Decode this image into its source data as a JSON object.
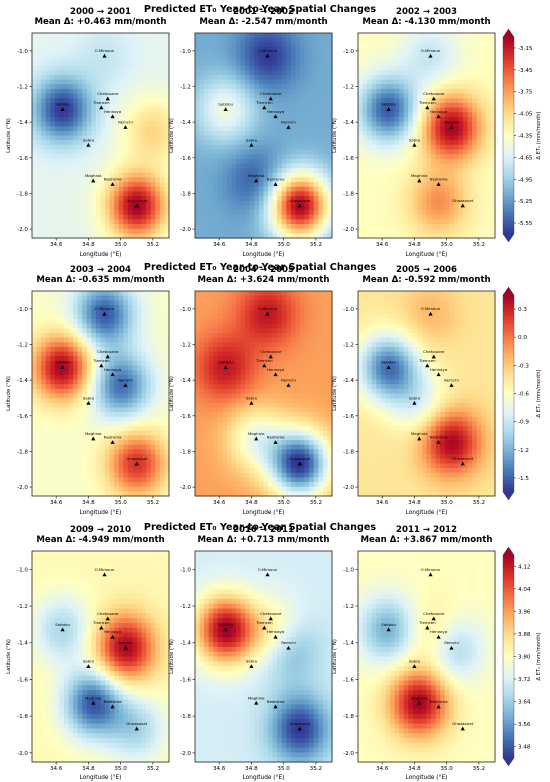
{
  "chart_data": [
    {
      "type": "heatmap",
      "title": "Predicted ET₀ Year-to-Year Spatial Changes",
      "colorbar": {
        "label": "Δ ET₀ (mm/month)",
        "ticks": [
          "-3.15",
          "-3.45",
          "-3.75",
          "-4.05",
          "-4.35",
          "-4.65",
          "-4.95",
          "-5.25",
          "-5.55"
        ],
        "range": [
          -5.7,
          -3.0
        ]
      },
      "panels": [
        {
          "title": "2000 → 2001",
          "subtitle": "Mean Δ: +0.463 mm/month",
          "xlabel": "Longitude (°E)",
          "ylabel": "Latitude (°N)",
          "xticks": [
            "34.6",
            "34.8",
            "35.0",
            "35.2"
          ],
          "yticks": [
            "-1.0",
            "-1.2",
            "-1.4",
            "-1.6",
            "-1.8",
            "-2.0"
          ],
          "xlim": [
            34.45,
            35.3
          ],
          "ylim": [
            -2.05,
            -0.9
          ],
          "base": 0.42,
          "hotspots": [
            {
              "lon": 34.64,
              "lat": -1.33,
              "v": 0.0
            },
            {
              "lon": 35.1,
              "lat": -1.87,
              "v": 1.0
            },
            {
              "lon": 34.9,
              "lat": -1.03,
              "v": 0.35
            },
            {
              "lon": 35.2,
              "lat": -1.45,
              "v": 0.62
            }
          ]
        },
        {
          "title": "2001 → 2002",
          "subtitle": "Mean Δ: -2.547 mm/month",
          "xlabel": "Longitude (°E)",
          "ylabel": "Latitude (°N)",
          "xticks": [
            "34.6",
            "34.8",
            "35.0",
            "35.2"
          ],
          "yticks": [
            "-1.0",
            "-1.2",
            "-1.4",
            "-1.6",
            "-1.8",
            "-2.0"
          ],
          "xlim": [
            34.45,
            35.3
          ],
          "ylim": [
            -2.05,
            -0.9
          ],
          "base": 0.2,
          "hotspots": [
            {
              "lon": 35.1,
              "lat": -1.87,
              "v": 1.0
            },
            {
              "lon": 34.64,
              "lat": -1.33,
              "v": 0.45
            },
            {
              "lon": 34.9,
              "lat": -1.03,
              "v": 0.0
            },
            {
              "lon": 34.83,
              "lat": -1.73,
              "v": 0.05
            }
          ]
        },
        {
          "title": "2002 → 2003",
          "subtitle": "Mean Δ: -4.130 mm/month",
          "xlabel": "Longitude (°E)",
          "ylabel": "Latitude (°N)",
          "xticks": [
            "34.6",
            "34.8",
            "35.0",
            "35.2"
          ],
          "yticks": [
            "-1.0",
            "-1.2",
            "-1.4",
            "-1.6",
            "-1.8",
            "-2.0"
          ],
          "xlim": [
            34.45,
            35.3
          ],
          "ylim": [
            -2.05,
            -0.9
          ],
          "base": 0.5,
          "hotspots": [
            {
              "lon": 34.64,
              "lat": -1.33,
              "v": 0.05
            },
            {
              "lon": 35.03,
              "lat": -1.43,
              "v": 1.0
            },
            {
              "lon": 34.9,
              "lat": -1.03,
              "v": 0.35
            },
            {
              "lon": 34.95,
              "lat": -1.85,
              "v": 0.75
            }
          ]
        }
      ]
    },
    {
      "type": "heatmap",
      "title": "Predicted ET₀ Year-to-Year Spatial Changes",
      "colorbar": {
        "label": "Δ ET₀ (mm/month)",
        "ticks": [
          "0.3",
          "0.0",
          "-0.3",
          "-0.6",
          "-0.9",
          "-1.2",
          "-1.5"
        ],
        "range": [
          -1.65,
          0.45
        ]
      },
      "panels": [
        {
          "title": "2003 → 2004",
          "subtitle": "Mean Δ: -0.635 mm/month",
          "xlabel": "Longitude (°E)",
          "ylabel": "Latitude (°N)",
          "xticks": [
            "34.6",
            "34.8",
            "35.0",
            "35.2"
          ],
          "yticks": [
            "-1.0",
            "-1.2",
            "-1.4",
            "-1.6",
            "-1.8",
            "-2.0"
          ],
          "xlim": [
            34.45,
            35.3
          ],
          "ylim": [
            -2.05,
            -0.9
          ],
          "base": 0.48,
          "hotspots": [
            {
              "lon": 34.64,
              "lat": -1.33,
              "v": 1.0
            },
            {
              "lon": 35.1,
              "lat": -1.87,
              "v": 0.9
            },
            {
              "lon": 34.9,
              "lat": -1.03,
              "v": 0.05
            },
            {
              "lon": 35.0,
              "lat": -1.43,
              "v": 0.08
            }
          ]
        },
        {
          "title": "2004 → 2005",
          "subtitle": "Mean Δ: +3.624 mm/month",
          "xlabel": "Longitude (°E)",
          "ylabel": "Latitude (°N)",
          "xticks": [
            "34.6",
            "34.8",
            "35.0",
            "35.2"
          ],
          "yticks": [
            "-1.0",
            "-1.2",
            "-1.4",
            "-1.6",
            "-1.8",
            "-2.0"
          ],
          "xlim": [
            34.45,
            35.3
          ],
          "ylim": [
            -2.05,
            -0.9
          ],
          "base": 0.72,
          "hotspots": [
            {
              "lon": 34.64,
              "lat": -1.33,
              "v": 0.95
            },
            {
              "lon": 34.9,
              "lat": -1.03,
              "v": 0.95
            },
            {
              "lon": 35.1,
              "lat": -1.87,
              "v": 0.0
            },
            {
              "lon": 34.83,
              "lat": -1.73,
              "v": 0.45
            }
          ]
        },
        {
          "title": "2005 → 2006",
          "subtitle": "Mean Δ: -0.592 mm/month",
          "xlabel": "Longitude (°E)",
          "ylabel": "Latitude (°N)",
          "xticks": [
            "34.6",
            "34.8",
            "35.0",
            "35.2"
          ],
          "yticks": [
            "-1.0",
            "-1.2",
            "-1.4",
            "-1.6",
            "-1.8",
            "-2.0"
          ],
          "xlim": [
            34.45,
            35.3
          ],
          "ylim": [
            -2.05,
            -0.9
          ],
          "base": 0.58,
          "hotspots": [
            {
              "lon": 34.64,
              "lat": -1.33,
              "v": 0.1
            },
            {
              "lon": 35.03,
              "lat": -1.75,
              "v": 1.0
            },
            {
              "lon": 34.83,
              "lat": -1.53,
              "v": 0.4
            },
            {
              "lon": 34.9,
              "lat": -1.03,
              "v": 0.68
            }
          ]
        }
      ]
    },
    {
      "type": "heatmap",
      "title": "Predicted ET₀ Year-to-Year Spatial Changes",
      "colorbar": {
        "label": "Δ ET₀ (mm/month)",
        "ticks": [
          "4.12",
          "4.04",
          "3.96",
          "3.88",
          "3.80",
          "3.72",
          "3.64",
          "3.56",
          "3.48"
        ],
        "range": [
          3.44,
          4.16
        ]
      },
      "panels": [
        {
          "title": "2009 → 2010",
          "subtitle": "Mean Δ: -4.949 mm/month",
          "xlabel": "Longitude (°E)",
          "ylabel": "Latitude (°N)",
          "xticks": [
            "34.6",
            "34.8",
            "35.0",
            "35.2"
          ],
          "yticks": [
            "-1.0",
            "-1.2",
            "-1.4",
            "-1.6",
            "-1.8",
            "-2.0"
          ],
          "xlim": [
            34.45,
            35.3
          ],
          "ylim": [
            -2.05,
            -0.9
          ],
          "base": 0.52,
          "hotspots": [
            {
              "lon": 35.03,
              "lat": -1.43,
              "v": 1.0
            },
            {
              "lon": 34.83,
              "lat": -1.73,
              "v": 0.05
            },
            {
              "lon": 34.64,
              "lat": -1.33,
              "v": 0.3
            },
            {
              "lon": 35.1,
              "lat": -1.87,
              "v": 0.3
            }
          ]
        },
        {
          "title": "2010 → 2011",
          "subtitle": "Mean Δ: +0.713 mm/month",
          "xlabel": "Longitude (°E)",
          "ylabel": "Latitude (°N)",
          "xticks": [
            "34.6",
            "34.8",
            "35.0",
            "35.2"
          ],
          "yticks": [
            "-1.0",
            "-1.2",
            "-1.4",
            "-1.6",
            "-1.8",
            "-2.0"
          ],
          "xlim": [
            34.45,
            35.3
          ],
          "ylim": [
            -2.05,
            -0.9
          ],
          "base": 0.38,
          "hotspots": [
            {
              "lon": 34.64,
              "lat": -1.33,
              "v": 1.0
            },
            {
              "lon": 35.1,
              "lat": -1.87,
              "v": 0.0
            },
            {
              "lon": 35.03,
              "lat": -1.43,
              "v": 0.15
            },
            {
              "lon": 34.95,
              "lat": -1.35,
              "v": 0.62
            }
          ]
        },
        {
          "title": "2011 → 2012",
          "subtitle": "Mean Δ: +3.867 mm/month",
          "xlabel": "Longitude (°E)",
          "ylabel": "Latitude (°N)",
          "xticks": [
            "34.6",
            "34.8",
            "35.0",
            "35.2"
          ],
          "yticks": [
            "-1.0",
            "-1.2",
            "-1.4",
            "-1.6",
            "-1.8",
            "-2.0"
          ],
          "xlim": [
            34.45,
            35.3
          ],
          "ylim": [
            -2.05,
            -0.9
          ],
          "base": 0.5,
          "hotspots": [
            {
              "lon": 34.83,
              "lat": -1.73,
              "v": 1.0
            },
            {
              "lon": 34.64,
              "lat": -1.33,
              "v": 0.2
            },
            {
              "lon": 35.03,
              "lat": -1.43,
              "v": 0.22
            },
            {
              "lon": 34.93,
              "lat": -1.37,
              "v": 0.7
            }
          ]
        }
      ]
    }
  ],
  "stations": [
    {
      "name": "O.Mimoun",
      "lon": 34.9,
      "lat": -1.03
    },
    {
      "name": "Sebdou",
      "lon": 34.64,
      "lat": -1.33
    },
    {
      "name": "Chetouane",
      "lon": 34.92,
      "lat": -1.27
    },
    {
      "name": "Tlemcen",
      "lon": 34.88,
      "lat": -1.32
    },
    {
      "name": "Hennaya",
      "lon": 34.95,
      "lat": -1.37
    },
    {
      "name": "Remchi",
      "lon": 35.03,
      "lat": -1.43
    },
    {
      "name": "Sabra",
      "lon": 34.8,
      "lat": -1.53
    },
    {
      "name": "Maghnia",
      "lon": 34.83,
      "lat": -1.73
    },
    {
      "name": "Nedroma",
      "lon": 34.95,
      "lat": -1.75
    },
    {
      "name": "Ghazaouet",
      "lon": 35.1,
      "lat": -1.87
    }
  ],
  "colors": {
    "scale": [
      "#313695",
      "#4575b4",
      "#74add1",
      "#abd9e9",
      "#e0f3f8",
      "#ffffbf",
      "#fee090",
      "#fdae61",
      "#f46d43",
      "#d73027",
      "#a50026"
    ]
  }
}
